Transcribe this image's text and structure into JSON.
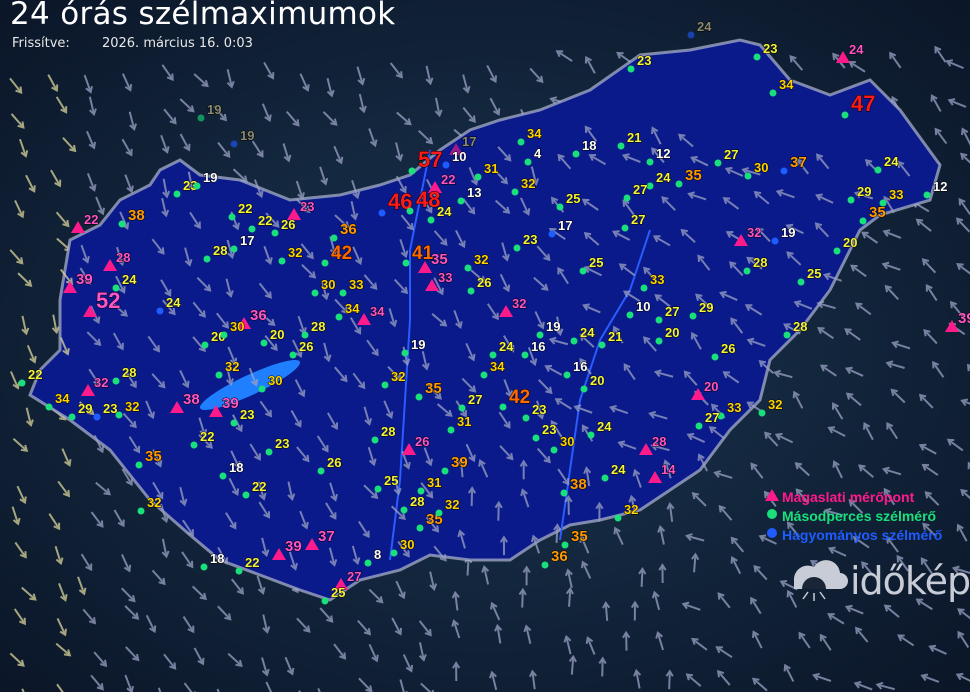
{
  "header": {
    "title": "24 órás szélmaximumok",
    "updated_label": "Frissítve:",
    "updated_value": "2026. március 16. 0:03"
  },
  "legend": [
    {
      "label": "Magaslati mérőpont",
      "symbol": "triangle",
      "color": "#ff1a8c"
    },
    {
      "label": "Másodperces szélmérő",
      "symbol": "dot",
      "color": "#19e07a"
    },
    {
      "label": "Hagyományos szélmérő",
      "symbol": "dot",
      "color": "#1e5cff"
    }
  ],
  "logo": "időkép",
  "colors": {
    "background": "#10203a",
    "country_fill": "#0a1a8a",
    "border": "#b0b8d0",
    "high_station_label": "#ff55c8",
    "value_under_20": "#ffffff",
    "value_20_29": "#f4f43a",
    "value_30_34": "#ffd400",
    "value_35_39": "#ff9a00",
    "value_40_44": "#ff6a00",
    "value_45_plus": "#ff1a1a"
  },
  "stations": [
    {
      "value": 22,
      "type": "m"
    },
    {
      "value": 23,
      "type": "m"
    },
    {
      "value": 28,
      "type": "m"
    },
    {
      "value": 39,
      "type": "m"
    },
    {
      "value": 52,
      "type": "m"
    },
    {
      "value": 36,
      "type": "m"
    },
    {
      "value": 34,
      "type": "m"
    },
    {
      "value": 32,
      "type": "m"
    },
    {
      "value": 38,
      "type": "m"
    },
    {
      "value": 39,
      "type": "m"
    },
    {
      "value": 39,
      "type": "m"
    },
    {
      "value": 37,
      "type": "m"
    },
    {
      "value": 27,
      "type": "m"
    },
    {
      "value": 17,
      "type": "m",
      "dimmed": true
    },
    {
      "value": 22,
      "type": "m"
    },
    {
      "value": 35,
      "type": "m"
    },
    {
      "value": 33,
      "type": "m"
    },
    {
      "value": 32,
      "type": "m"
    },
    {
      "value": 26,
      "type": "m"
    },
    {
      "value": 32,
      "type": "m"
    },
    {
      "value": 20,
      "type": "m"
    },
    {
      "value": 28,
      "type": "m"
    },
    {
      "value": 14,
      "type": "m"
    },
    {
      "value": 24,
      "type": "m"
    },
    {
      "value": 39,
      "type": "m"
    },
    {
      "value": 19,
      "type": "s",
      "dimmed": true
    },
    {
      "value": 19,
      "type": "h",
      "dimmed": true
    },
    {
      "value": 24,
      "type": "h",
      "dimmed": true
    },
    {
      "value": 23,
      "type": "s"
    },
    {
      "value": 19,
      "type": "s"
    },
    {
      "value": 22,
      "type": "s"
    },
    {
      "value": 22,
      "type": "s"
    },
    {
      "value": 26,
      "type": "s"
    },
    {
      "value": 28,
      "type": "s"
    },
    {
      "value": 17,
      "type": "s"
    },
    {
      "value": 32,
      "type": "s"
    },
    {
      "value": 42,
      "type": "s"
    },
    {
      "value": 36,
      "type": "s"
    },
    {
      "value": 38,
      "type": "s"
    },
    {
      "value": 24,
      "type": "s"
    },
    {
      "value": 24,
      "type": "h"
    },
    {
      "value": 20,
      "type": "s"
    },
    {
      "value": 30,
      "type": "s"
    },
    {
      "value": 20,
      "type": "s"
    },
    {
      "value": 28,
      "type": "s"
    },
    {
      "value": 30,
      "type": "s"
    },
    {
      "value": 33,
      "type": "s"
    },
    {
      "value": 34,
      "type": "s"
    },
    {
      "value": 26,
      "type": "s"
    },
    {
      "value": 32,
      "type": "s"
    },
    {
      "value": 30,
      "type": "s"
    },
    {
      "value": 22,
      "type": "s"
    },
    {
      "value": 34,
      "type": "s"
    },
    {
      "value": 29,
      "type": "s"
    },
    {
      "value": 23,
      "type": "h"
    },
    {
      "value": 32,
      "type": "s"
    },
    {
      "value": 28,
      "type": "s"
    },
    {
      "value": 23,
      "type": "s"
    },
    {
      "value": 22,
      "type": "s"
    },
    {
      "value": 35,
      "type": "s"
    },
    {
      "value": 18,
      "type": "s"
    },
    {
      "value": 23,
      "type": "s"
    },
    {
      "value": 26,
      "type": "s"
    },
    {
      "value": 22,
      "type": "s"
    },
    {
      "value": 32,
      "type": "s"
    },
    {
      "value": 18,
      "type": "s"
    },
    {
      "value": 22,
      "type": "s"
    },
    {
      "value": 25,
      "type": "s"
    },
    {
      "value": 8,
      "type": "s"
    },
    {
      "value": 30,
      "type": "s"
    },
    {
      "value": 35,
      "type": "s"
    },
    {
      "value": 32,
      "type": "s"
    },
    {
      "value": 28,
      "type": "s"
    },
    {
      "value": 31,
      "type": "s"
    },
    {
      "value": 39,
      "type": "s"
    },
    {
      "value": 25,
      "type": "s"
    },
    {
      "value": 28,
      "type": "s"
    },
    {
      "value": 19,
      "type": "s"
    },
    {
      "value": 32,
      "type": "s"
    },
    {
      "value": 35,
      "type": "s"
    },
    {
      "value": 27,
      "type": "s"
    },
    {
      "value": 31,
      "type": "s"
    },
    {
      "value": 34,
      "type": "s"
    },
    {
      "value": 42,
      "type": "s"
    },
    {
      "value": 24,
      "type": "s"
    },
    {
      "value": 16,
      "type": "s"
    },
    {
      "value": 19,
      "type": "s"
    },
    {
      "value": 24,
      "type": "s"
    },
    {
      "value": 21,
      "type": "s"
    },
    {
      "value": 16,
      "type": "s"
    },
    {
      "value": 20,
      "type": "s"
    },
    {
      "value": 23,
      "type": "s"
    },
    {
      "value": 23,
      "type": "s"
    },
    {
      "value": 30,
      "type": "s"
    },
    {
      "value": 24,
      "type": "s"
    },
    {
      "value": 38,
      "type": "s"
    },
    {
      "value": 24,
      "type": "s"
    },
    {
      "value": 32,
      "type": "s"
    },
    {
      "value": 36,
      "type": "s"
    },
    {
      "value": 35,
      "type": "s"
    },
    {
      "value": 12,
      "type": "s"
    },
    {
      "value": 24,
      "type": "s"
    },
    {
      "value": 35,
      "type": "s"
    },
    {
      "value": 27,
      "type": "s"
    },
    {
      "value": 27,
      "type": "s"
    },
    {
      "value": 33,
      "type": "s"
    },
    {
      "value": 25,
      "type": "s"
    },
    {
      "value": 10,
      "type": "s"
    },
    {
      "value": 27,
      "type": "s"
    },
    {
      "value": 29,
      "type": "s"
    },
    {
      "value": 20,
      "type": "s"
    },
    {
      "value": 26,
      "type": "s"
    },
    {
      "value": 28,
      "type": "s"
    },
    {
      "value": 33,
      "type": "s"
    },
    {
      "value": 27,
      "type": "s"
    },
    {
      "value": 32,
      "type": "s"
    },
    {
      "value": 28,
      "type": "s"
    },
    {
      "value": 19,
      "type": "h"
    },
    {
      "value": 25,
      "type": "s"
    },
    {
      "value": 20,
      "type": "s"
    },
    {
      "value": 35,
      "type": "s"
    },
    {
      "value": 29,
      "type": "s"
    },
    {
      "value": 33,
      "type": "s"
    },
    {
      "value": 24,
      "type": "s"
    },
    {
      "value": 12,
      "type": "s"
    },
    {
      "value": 47,
      "type": "s"
    },
    {
      "value": 34,
      "type": "s"
    },
    {
      "value": 23,
      "type": "s"
    },
    {
      "value": 27,
      "type": "s"
    },
    {
      "value": 30,
      "type": "s"
    },
    {
      "value": 37,
      "type": "h"
    },
    {
      "value": 21,
      "type": "s"
    },
    {
      "value": 18,
      "type": "s"
    },
    {
      "value": 4,
      "type": "s"
    },
    {
      "value": 34,
      "type": "s"
    },
    {
      "value": 31,
      "type": "s"
    },
    {
      "value": 32,
      "type": "s"
    },
    {
      "value": 25,
      "type": "s"
    },
    {
      "value": 17,
      "type": "h"
    },
    {
      "value": 23,
      "type": "s"
    },
    {
      "value": 13,
      "type": "s"
    },
    {
      "value": 10,
      "type": "h"
    },
    {
      "value": 24,
      "type": "s"
    },
    {
      "value": 57,
      "type": "s"
    },
    {
      "value": 46,
      "type": "h"
    },
    {
      "value": 48,
      "type": "s"
    },
    {
      "value": 41,
      "type": "s"
    },
    {
      "value": 32,
      "type": "s"
    },
    {
      "value": 26,
      "type": "s"
    },
    {
      "value": 23,
      "type": "s"
    }
  ]
}
